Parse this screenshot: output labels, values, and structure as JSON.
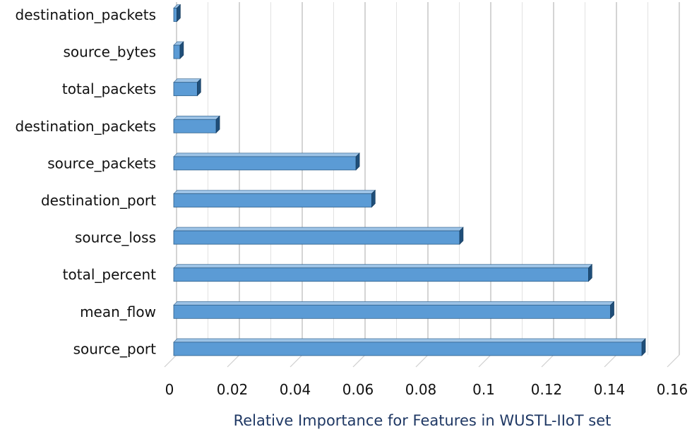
{
  "chart_data": {
    "type": "bar",
    "orientation": "horizontal",
    "style": "3d",
    "categories": [
      "destination_packets",
      "source_bytes",
      "total_packets",
      "destination_packets",
      "source_packets",
      "destination_port",
      "source_loss",
      "total_percent",
      "mean_flow",
      "source_port"
    ],
    "values": [
      0.001,
      0.002,
      0.0075,
      0.0135,
      0.058,
      0.063,
      0.091,
      0.132,
      0.139,
      0.149
    ],
    "title": "",
    "xlabel": "Relative Importance for Features in WUSTL-IIoT set",
    "ylabel": "",
    "xlim": [
      0,
      0.16
    ],
    "x_ticks": [
      0,
      0.02,
      0.04,
      0.06,
      0.08,
      0.1,
      0.12,
      0.14,
      0.16
    ],
    "x_tick_labels": [
      "0",
      "0.02",
      "0.04",
      "0.06",
      "0.08",
      "0.1",
      "0.12",
      "0.14",
      "0.16"
    ],
    "grid": true,
    "colors": {
      "bar_front": "#5b9bd5",
      "bar_top": "#9dc3e6",
      "bar_side": "#1f4e79",
      "grid": "#b8b8b8",
      "title": "#1f3864"
    }
  }
}
